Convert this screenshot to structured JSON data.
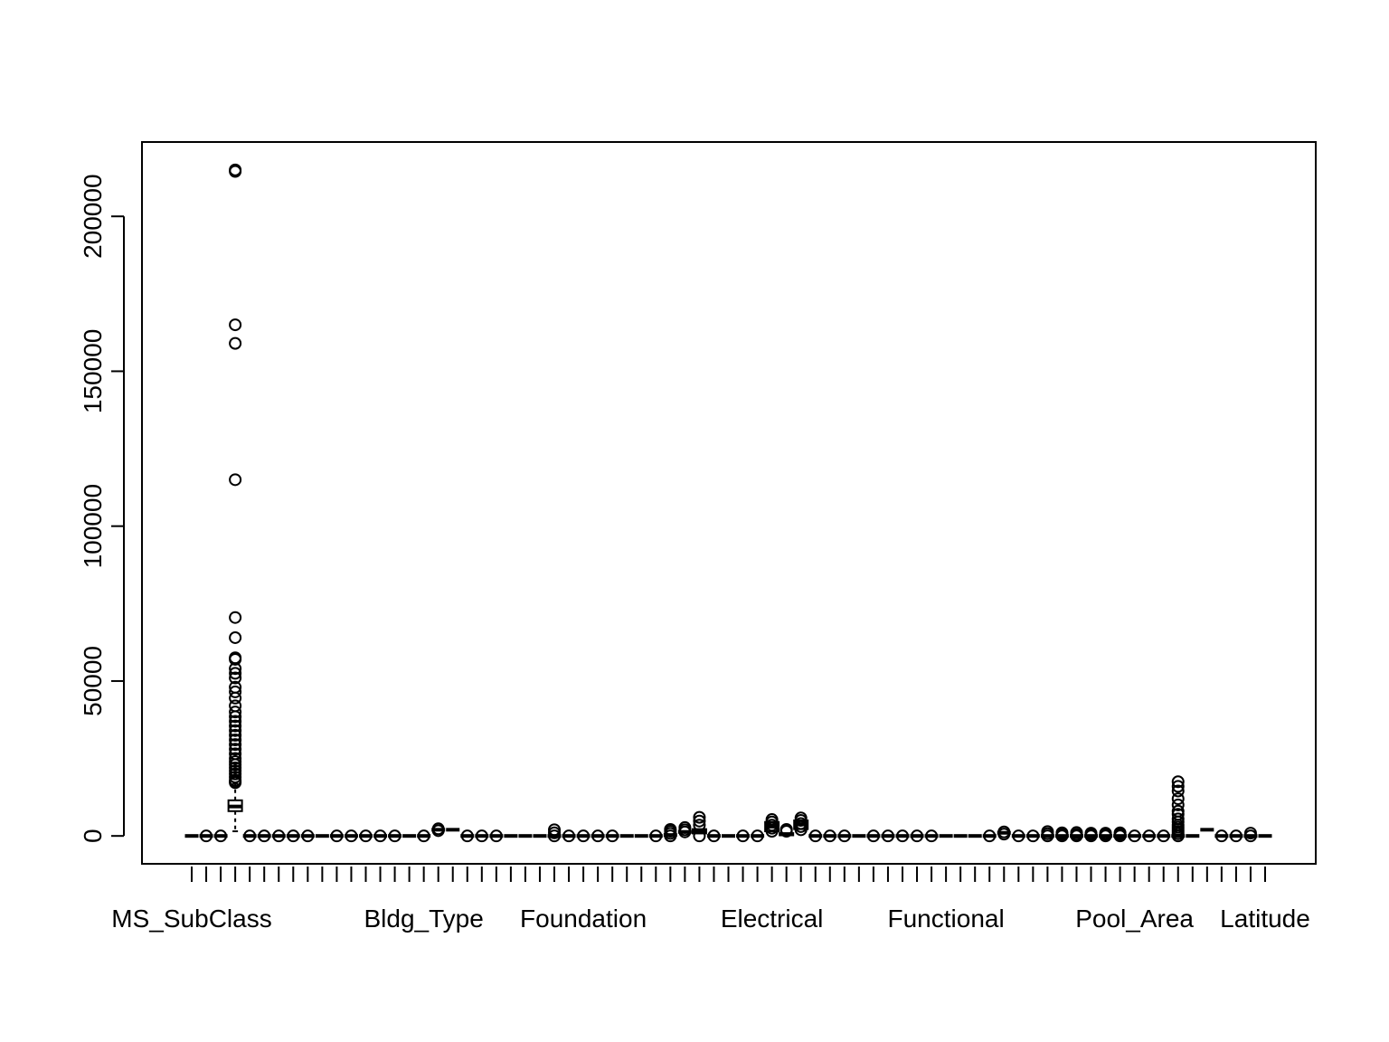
{
  "chart_data": {
    "type": "boxplot",
    "title": "",
    "xlabel": "",
    "ylabel": "",
    "ylim": [
      -9000,
      224000
    ],
    "y_ticks": [
      0,
      50000,
      100000,
      150000,
      200000
    ],
    "y_tick_labels": [
      "0",
      "50000",
      "100000",
      "150000",
      "200000"
    ],
    "category_count": 75,
    "x_labels": [
      {
        "index": 1,
        "text": "MS_SubClass"
      },
      {
        "index": 17,
        "text": "Bldg_Type"
      },
      {
        "index": 28,
        "text": "Foundation"
      },
      {
        "index": 41,
        "text": "Electrical"
      },
      {
        "index": 53,
        "text": "Functional"
      },
      {
        "index": 66,
        "text": "Pool_Area"
      },
      {
        "index": 75,
        "text": "Latitude"
      }
    ],
    "series": [
      {
        "index": 1,
        "median": 0
      },
      {
        "index": 2,
        "median": 0,
        "outliers": [
          0
        ]
      },
      {
        "index": 3,
        "median": 0,
        "outliers": [
          0
        ]
      },
      {
        "index": 4,
        "median": 9500,
        "q1": 8000,
        "q3": 11500,
        "whisker_low": 1500,
        "whisker_high": 17000,
        "outliers": [
          215000,
          214500,
          165000,
          159000,
          115000,
          70500,
          64000,
          57500,
          57000,
          54000,
          52500,
          51000,
          48000,
          46500,
          44500,
          42000,
          40000,
          38500,
          37000,
          35500,
          34000,
          32500,
          31000,
          29500,
          28000,
          26500,
          25000,
          24000,
          23000,
          22000,
          21000,
          20000,
          19000,
          18000,
          17500,
          17200
        ]
      },
      {
        "index": 5,
        "median": 0,
        "outliers": [
          0
        ]
      },
      {
        "index": 6,
        "median": 0,
        "outliers": [
          0
        ]
      },
      {
        "index": 7,
        "median": 0,
        "outliers": [
          0
        ]
      },
      {
        "index": 8,
        "median": 0,
        "outliers": [
          0
        ]
      },
      {
        "index": 9,
        "median": 0,
        "outliers": [
          0
        ]
      },
      {
        "index": 10,
        "median": 0
      },
      {
        "index": 11,
        "median": 0,
        "outliers": [
          0
        ]
      },
      {
        "index": 12,
        "median": 0,
        "outliers": [
          0
        ]
      },
      {
        "index": 13,
        "median": 0,
        "outliers": [
          0
        ]
      },
      {
        "index": 14,
        "median": 0,
        "outliers": [
          0
        ]
      },
      {
        "index": 15,
        "median": 0,
        "outliers": [
          0
        ]
      },
      {
        "index": 16,
        "median": 0
      },
      {
        "index": 17,
        "median": 0,
        "outliers": [
          0
        ]
      },
      {
        "index": 18,
        "median": 2000,
        "outliers": [
          1700,
          2300
        ]
      },
      {
        "index": 19,
        "median": 2000
      },
      {
        "index": 20,
        "median": 0,
        "outliers": [
          0
        ]
      },
      {
        "index": 21,
        "median": 0,
        "outliers": [
          0
        ]
      },
      {
        "index": 22,
        "median": 0,
        "outliers": [
          0
        ]
      },
      {
        "index": 23,
        "median": 0
      },
      {
        "index": 24,
        "median": 0
      },
      {
        "index": 25,
        "median": 0
      },
      {
        "index": 26,
        "median": 0,
        "outliers": [
          0,
          1000,
          2000
        ]
      },
      {
        "index": 27,
        "median": 0,
        "outliers": [
          0
        ]
      },
      {
        "index": 28,
        "median": 0,
        "outliers": [
          0
        ]
      },
      {
        "index": 29,
        "median": 0,
        "outliers": [
          0
        ]
      },
      {
        "index": 30,
        "median": 0,
        "outliers": [
          0
        ]
      },
      {
        "index": 31,
        "median": 0
      },
      {
        "index": 32,
        "median": 0
      },
      {
        "index": 33,
        "median": 0,
        "outliers": [
          0
        ]
      },
      {
        "index": 34,
        "median": 300,
        "outliers": [
          0,
          800,
          1500,
          2100
        ]
      },
      {
        "index": 35,
        "median": 1300,
        "outliers": [
          1300,
          2000,
          2700
        ]
      },
      {
        "index": 36,
        "median": 1500,
        "q1": 800,
        "q3": 2200,
        "outliers": [
          0,
          3500,
          4800,
          6000
        ]
      },
      {
        "index": 37,
        "median": 0,
        "outliers": [
          0
        ]
      },
      {
        "index": 38,
        "median": 0
      },
      {
        "index": 39,
        "median": 0,
        "outliers": [
          0
        ]
      },
      {
        "index": 40,
        "median": 0,
        "outliers": [
          0
        ]
      },
      {
        "index": 41,
        "median": 3000,
        "q1": 1500,
        "q3": 4500,
        "outliers": [
          1500,
          2500,
          3500,
          4500,
          5300
        ]
      },
      {
        "index": 42,
        "median": 500,
        "q1": 200,
        "q3": 900,
        "outliers": [
          1500,
          2100
        ]
      },
      {
        "index": 43,
        "median": 3800,
        "q1": 2200,
        "q3": 5000,
        "outliers": [
          2000,
          3000,
          4000,
          5000,
          5800
        ]
      },
      {
        "index": 44,
        "median": 0,
        "outliers": [
          0
        ]
      },
      {
        "index": 45,
        "median": 0,
        "outliers": [
          0
        ]
      },
      {
        "index": 46,
        "median": 0,
        "outliers": [
          0
        ]
      },
      {
        "index": 47,
        "median": 0
      },
      {
        "index": 48,
        "median": 0,
        "outliers": [
          0
        ]
      },
      {
        "index": 49,
        "median": 0,
        "outliers": [
          0
        ]
      },
      {
        "index": 50,
        "median": 0,
        "outliers": [
          0
        ]
      },
      {
        "index": 51,
        "median": 0,
        "outliers": [
          0
        ]
      },
      {
        "index": 52,
        "median": 0,
        "outliers": [
          0
        ]
      },
      {
        "index": 53,
        "median": 0
      },
      {
        "index": 54,
        "median": 0
      },
      {
        "index": 55,
        "median": 0
      },
      {
        "index": 56,
        "median": 0,
        "outliers": [
          0
        ]
      },
      {
        "index": 57,
        "median": 1000,
        "outliers": [
          1300,
          600
        ]
      },
      {
        "index": 58,
        "median": 0,
        "outliers": [
          0
        ]
      },
      {
        "index": 59,
        "median": 0,
        "outliers": [
          0
        ]
      },
      {
        "index": 60,
        "median": 0,
        "outliers": [
          0,
          700,
          1400
        ]
      },
      {
        "index": 61,
        "median": 0,
        "outliers": [
          0,
          500,
          1000
        ]
      },
      {
        "index": 62,
        "median": 0,
        "outliers": [
          0,
          500,
          1100
        ]
      },
      {
        "index": 63,
        "median": 0,
        "outliers": [
          0,
          500,
          900
        ]
      },
      {
        "index": 64,
        "median": 0,
        "outliers": [
          0,
          500,
          900
        ]
      },
      {
        "index": 65,
        "median": 0,
        "outliers": [
          0,
          500,
          1000
        ]
      },
      {
        "index": 66,
        "median": 0,
        "outliers": [
          0
        ]
      },
      {
        "index": 67,
        "median": 0,
        "outliers": [
          0
        ]
      },
      {
        "index": 68,
        "median": 0,
        "outliers": [
          0
        ]
      },
      {
        "index": 69,
        "median": 0,
        "outliers": [
          0,
          700,
          1400,
          2100,
          2800,
          3500,
          4500,
          5500,
          7000,
          8000,
          10000,
          12000,
          14500,
          16000,
          17500
        ]
      },
      {
        "index": 70,
        "median": 0
      },
      {
        "index": 71,
        "median": 2000
      },
      {
        "index": 72,
        "median": 0,
        "outliers": [
          0
        ]
      },
      {
        "index": 73,
        "median": 0,
        "outliers": [
          0
        ]
      },
      {
        "index": 74,
        "median": 0,
        "outliers": [
          0,
          900
        ]
      },
      {
        "index": 75,
        "median": 0
      }
    ]
  }
}
